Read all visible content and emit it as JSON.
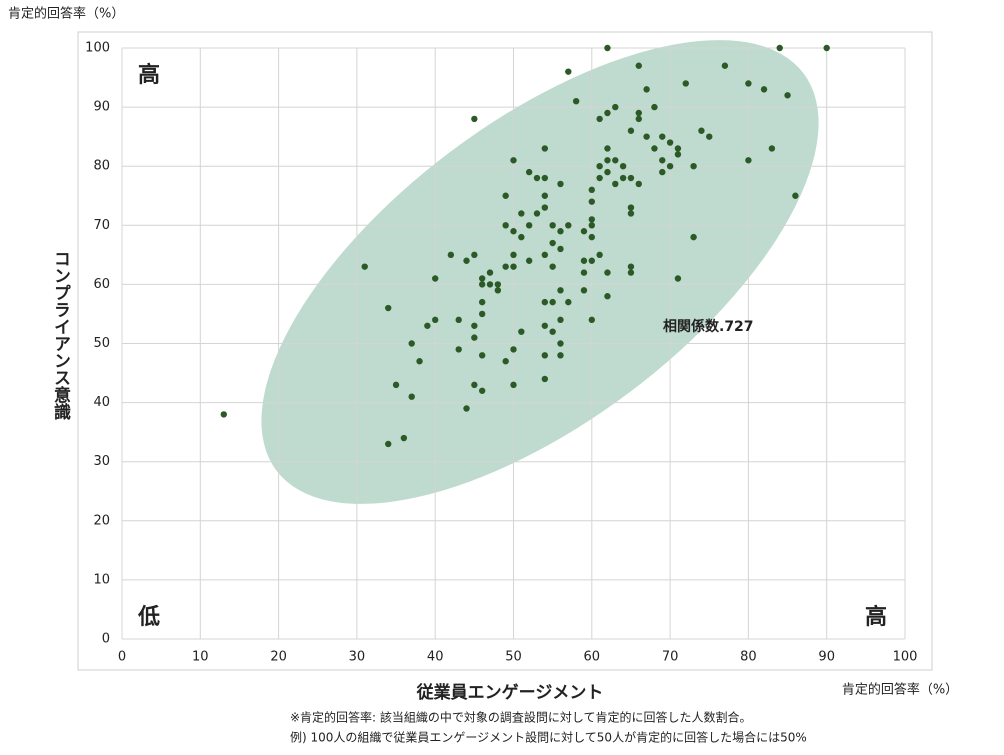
{
  "chart_data": {
    "type": "scatter",
    "y_unit_label": "肯定的回答率（%）",
    "ylabel": "コンプライアンス意識",
    "xlabel": "従業員エンゲージメント",
    "x_unit_label": "肯定的回答率（%）",
    "corner_labels": {
      "top_left": "高",
      "bottom_left": "低",
      "bottom_right": "高"
    },
    "annotation": "相関係数.727",
    "color": "#2b5a26",
    "grid": true,
    "xlim": [
      0,
      100
    ],
    "ylim": [
      0,
      100
    ],
    "xticks": [
      0,
      10,
      20,
      30,
      40,
      50,
      60,
      70,
      80,
      90,
      100
    ],
    "yticks": [
      0,
      10,
      20,
      30,
      40,
      50,
      60,
      70,
      80,
      90,
      100
    ],
    "x": [
      13,
      31,
      34,
      34,
      35,
      36,
      37,
      37,
      38,
      39,
      40,
      40,
      42,
      43,
      43,
      44,
      44,
      45,
      45,
      45,
      45,
      45,
      46,
      46,
      46,
      46,
      46,
      46,
      47,
      47,
      48,
      48,
      49,
      49,
      49,
      49,
      50,
      50,
      50,
      50,
      50,
      50,
      51,
      51,
      51,
      52,
      52,
      52,
      53,
      53,
      54,
      54,
      54,
      54,
      54,
      54,
      54,
      54,
      54,
      55,
      55,
      55,
      55,
      55,
      56,
      56,
      56,
      56,
      56,
      56,
      56,
      57,
      57,
      57,
      58,
      59,
      59,
      59,
      59,
      60,
      60,
      60,
      60,
      60,
      60,
      60,
      61,
      61,
      61,
      61,
      62,
      62,
      62,
      62,
      62,
      62,
      62,
      63,
      63,
      63,
      64,
      64,
      65,
      65,
      65,
      65,
      65,
      65,
      66,
      66,
      66,
      66,
      67,
      67,
      68,
      68,
      69,
      69,
      69,
      70,
      70,
      71,
      71,
      71,
      72,
      73,
      73,
      74,
      75,
      77,
      80,
      80,
      82,
      83,
      84,
      85,
      86,
      90
    ],
    "values": [
      38,
      63,
      56,
      33,
      43,
      34,
      50,
      41,
      47,
      53,
      54,
      61,
      65,
      54,
      49,
      64,
      39,
      65,
      53,
      51,
      43,
      88,
      61,
      60,
      57,
      55,
      48,
      42,
      62,
      60,
      60,
      59,
      75,
      70,
      63,
      47,
      81,
      69,
      65,
      63,
      49,
      43,
      72,
      68,
      52,
      79,
      70,
      64,
      78,
      72,
      83,
      78,
      75,
      73,
      65,
      57,
      53,
      48,
      44,
      70,
      67,
      63,
      57,
      52,
      77,
      69,
      66,
      59,
      54,
      50,
      48,
      96,
      70,
      57,
      91,
      69,
      64,
      62,
      59,
      76,
      74,
      71,
      70,
      68,
      64,
      54,
      80,
      78,
      88,
      65,
      100,
      89,
      83,
      81,
      79,
      62,
      58,
      90,
      81,
      77,
      80,
      78,
      86,
      78,
      73,
      72,
      63,
      62,
      97,
      89,
      88,
      77,
      93,
      85,
      90,
      83,
      85,
      81,
      79,
      84,
      80,
      83,
      82,
      61,
      94,
      80,
      68,
      86,
      85,
      97,
      94,
      81,
      93,
      83,
      100,
      92,
      75,
      100
    ]
  },
  "notes": [
    "※肯定的回答率: 該当組織の中で対象の調査設問に対して肯定的に回答した人数割合。",
    "例) 100人の組織で従業員エンゲージメント設問に対して50人が肯定的に回答した場合には50%"
  ]
}
